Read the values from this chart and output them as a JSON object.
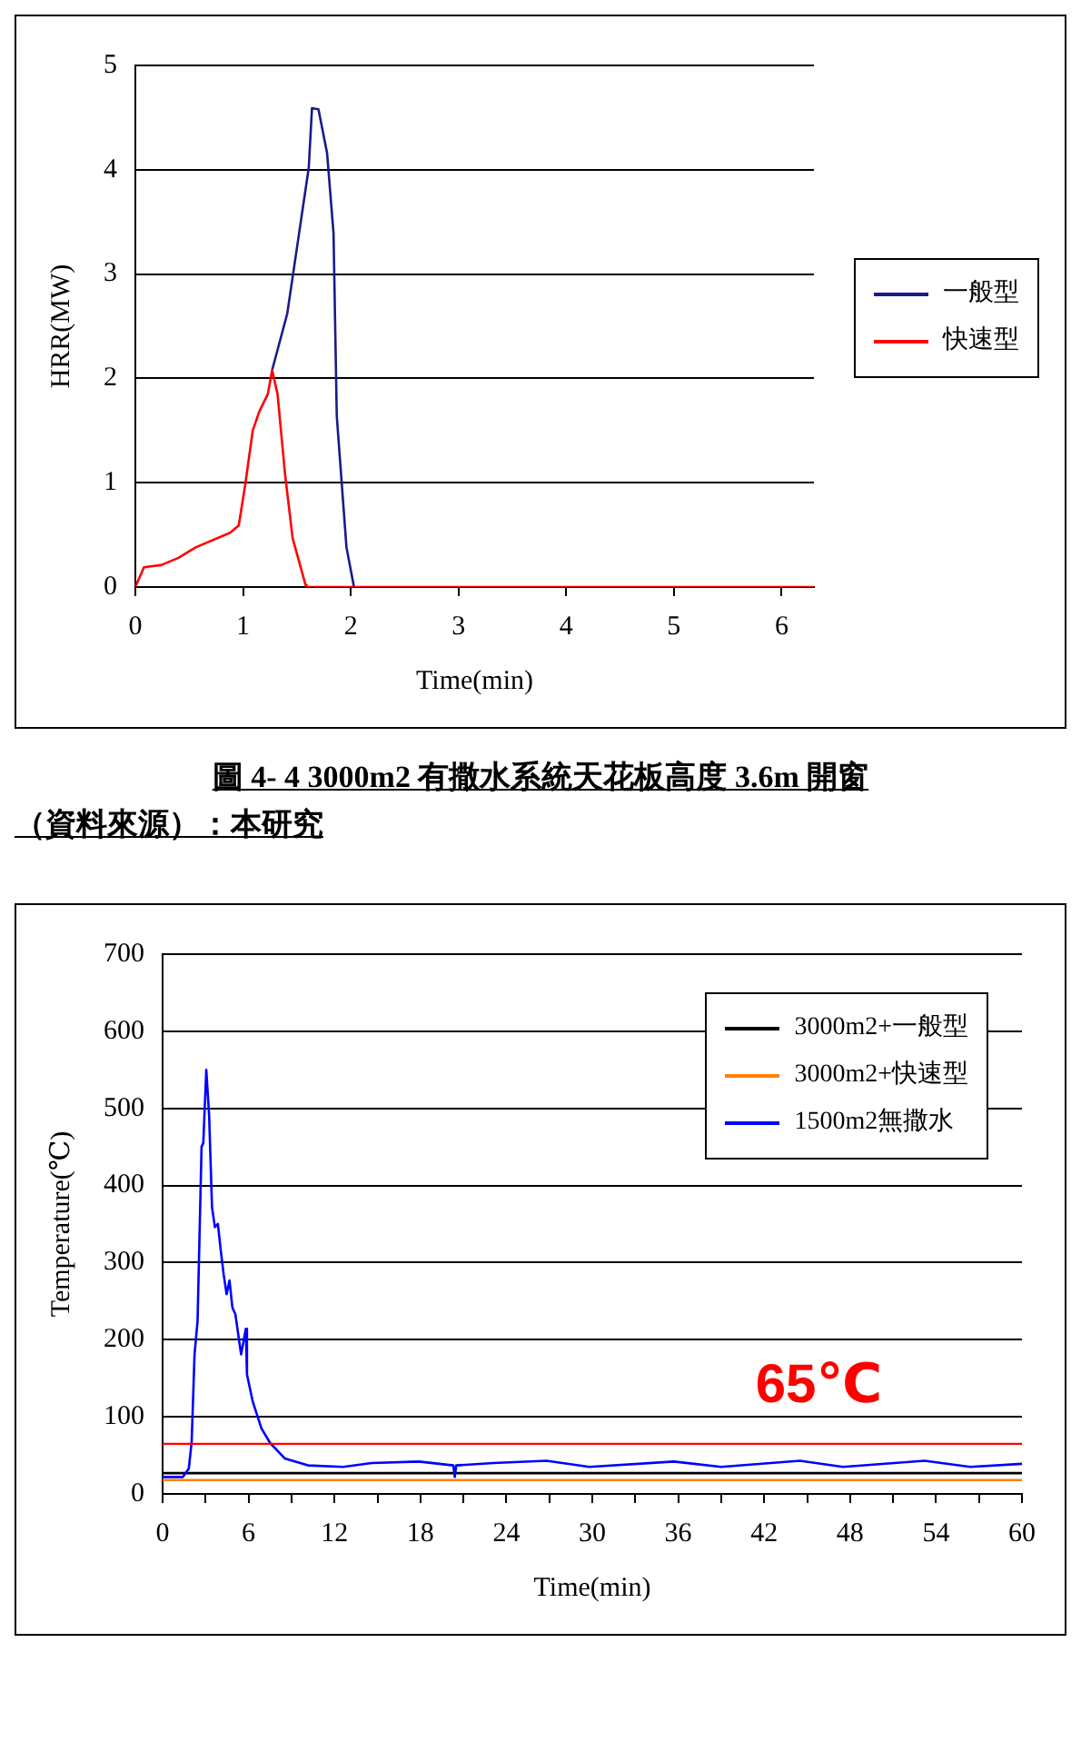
{
  "chart_data": [
    {
      "type": "line",
      "xlabel": "Time(min)",
      "ylabel": "HRR(MW)",
      "xlim": [
        0,
        6.3
      ],
      "xticks": [
        0,
        1,
        2,
        3,
        4,
        5,
        6
      ],
      "ylim": [
        0,
        5
      ],
      "yticks": [
        0,
        1,
        2,
        3,
        4,
        5
      ],
      "grid": "y",
      "legend": "right",
      "marker": "none",
      "line_style": "solid",
      "annotations": [
        "圖 4- 4 3000m2 有撒水系統天花板高度 3.6m 開窗",
        "（資料來源）：本研究"
      ],
      "series": [
        {
          "name": "一般型",
          "color": "#1a1a8c",
          "x": [
            1.27,
            1.41,
            1.52,
            1.61,
            1.64,
            1.7,
            1.78,
            1.84,
            1.87,
            1.96,
            2.03
          ],
          "values": [
            2.08,
            2.62,
            3.39,
            4.02,
            4.59,
            4.58,
            4.16,
            3.39,
            1.64,
            0.38,
            0
          ]
        },
        {
          "name": "快速型",
          "color": "#ff0000",
          "x": [
            0,
            0.08,
            0.16,
            0.24,
            0.4,
            0.56,
            0.88,
            0.96,
            1.02,
            1.09,
            1.15,
            1.23,
            1.27,
            1.32,
            1.39,
            1.46,
            1.58,
            1.59,
            6.3
          ],
          "values": [
            0,
            0.19,
            0.2,
            0.21,
            0.28,
            0.38,
            0.52,
            0.59,
            0.98,
            1.5,
            1.68,
            1.85,
            2.08,
            1.85,
            1.08,
            0.47,
            0.02,
            0,
            0
          ]
        }
      ]
    },
    {
      "type": "line",
      "xlabel": "Time(min)",
      "ylabel": "Temperature(℃)",
      "xlim": [
        0,
        60
      ],
      "xticks": [
        0,
        {
          "value": 3,
          "label": null
        },
        6,
        {
          "value": 9,
          "label": null
        },
        12,
        {
          "value": 15,
          "label": null
        },
        18,
        {
          "value": 21,
          "label": null
        },
        24,
        {
          "value": 27,
          "label": null
        },
        30,
        {
          "value": 33,
          "label": null
        },
        36,
        {
          "value": 39,
          "label": null
        },
        42,
        {
          "value": 45,
          "label": null
        },
        48,
        {
          "value": 51,
          "label": null
        },
        54,
        {
          "value": 57,
          "label": null
        },
        60
      ],
      "ylim": [
        0,
        700
      ],
      "yticks": [
        0,
        100,
        200,
        300,
        400,
        500,
        600,
        700
      ],
      "grid": "y",
      "legend": "top right",
      "marker": "none",
      "line_style": "solid",
      "ref_lines": [
        {
          "axis": "y",
          "value": 65,
          "label": "65℃",
          "color": "#ff0000"
        }
      ],
      "series": [
        {
          "name": "3000m2+一般型",
          "color": "#000000",
          "x": [
            0,
            60
          ],
          "values": [
            27,
            27
          ]
        },
        {
          "name": "3000m2+快速型",
          "color": "#ff8000",
          "x": [
            0,
            60
          ],
          "values": [
            18,
            18
          ]
        },
        {
          "name": "1500m2無撒水",
          "color": "#0000ff",
          "x": [
            0,
            1.42,
            1.83,
            2.03,
            2.23,
            2.44,
            2.72,
            2.84,
            3.05,
            3.25,
            3.45,
            3.65,
            3.86,
            4.06,
            4.26,
            4.47,
            4.67,
            4.87,
            5.08,
            5.48,
            5.81,
            5.89,
            6.29,
            6.9,
            7.51,
            8.53,
            10.15,
            12.6,
            14.6,
            17.9,
            20.3,
            20.4,
            20.5,
            23.1,
            26.8,
            29.8,
            35.7,
            39,
            44.5,
            47.5,
            53.2,
            56.4,
            60
          ],
          "values": [
            22,
            22,
            33,
            68,
            181,
            224,
            450,
            455,
            550,
            490,
            372,
            346,
            350,
            316,
            285,
            259,
            277,
            242,
            233,
            181,
            214,
            155,
            120,
            85,
            66,
            46,
            37,
            35,
            40,
            42,
            37,
            22,
            37,
            40,
            43,
            35,
            42,
            35,
            43,
            35,
            43,
            35,
            39
          ]
        }
      ]
    }
  ]
}
